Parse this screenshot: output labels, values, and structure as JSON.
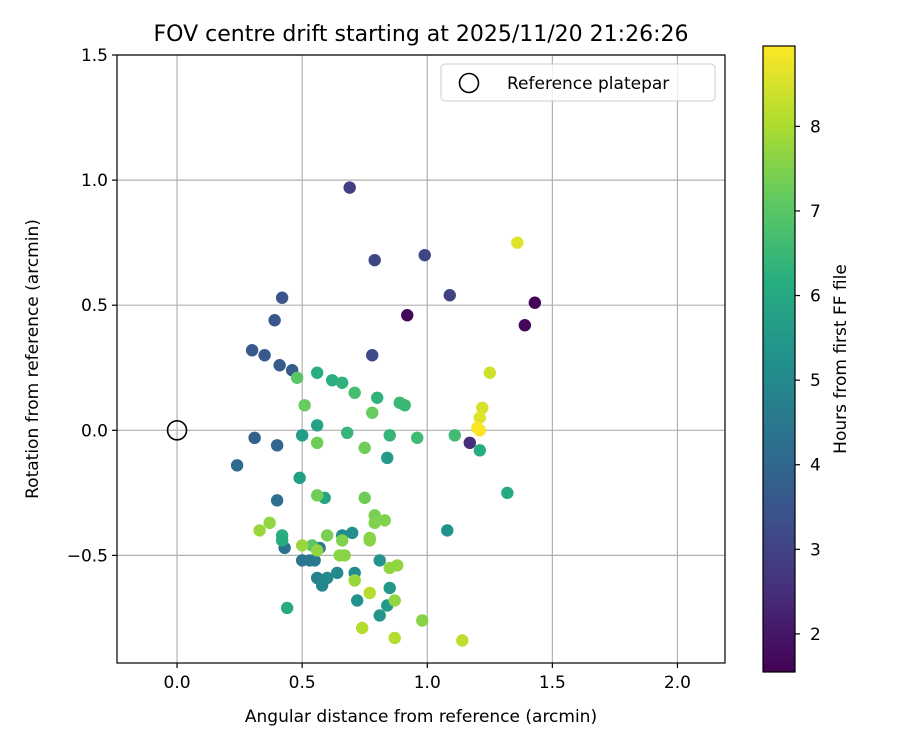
{
  "chart_data": {
    "type": "scatter",
    "title": "FOV centre drift starting at 2025/11/20 21:26:26",
    "xlabel": "Angular distance from reference (arcmin)",
    "ylabel": "Rotation from reference (arcmin)",
    "xlim": [
      -0.24,
      2.19
    ],
    "ylim": [
      -0.93,
      1.5
    ],
    "xticks": [
      0.0,
      0.5,
      1.0,
      1.5,
      2.0
    ],
    "xtick_labels": [
      "0.0",
      "0.5",
      "1.0",
      "1.5",
      "2.0"
    ],
    "yticks": [
      -0.5,
      0.0,
      0.5,
      1.0,
      1.5
    ],
    "ytick_labels": [
      "−0.5",
      "0.0",
      "0.5",
      "1.0",
      "1.5"
    ],
    "grid": true,
    "legend": {
      "position": "top-right",
      "entries": [
        "Reference platepar"
      ]
    },
    "reference": {
      "x": 0.0,
      "y": 0.0,
      "label": "Reference platepar"
    },
    "colorbar": {
      "label": "Hours from first FF file",
      "colormap": "viridis",
      "range": [
        1.55,
        8.95
      ],
      "ticks": [
        2,
        3,
        4,
        5,
        6,
        7,
        8
      ],
      "tick_labels": [
        "2",
        "3",
        "4",
        "5",
        "6",
        "7",
        "8"
      ]
    },
    "points": [
      {
        "x": 0.92,
        "y": 0.46,
        "h": 1.7
      },
      {
        "x": 1.43,
        "y": 0.51,
        "h": 1.6
      },
      {
        "x": 1.39,
        "y": 0.42,
        "h": 1.65
      },
      {
        "x": 1.17,
        "y": -0.05,
        "h": 2.5
      },
      {
        "x": 0.69,
        "y": 0.97,
        "h": 2.9
      },
      {
        "x": 0.79,
        "y": 0.68,
        "h": 3.1
      },
      {
        "x": 0.99,
        "y": 0.7,
        "h": 3.1
      },
      {
        "x": 1.09,
        "y": 0.54,
        "h": 3.0
      },
      {
        "x": 0.78,
        "y": 0.3,
        "h": 3.2
      },
      {
        "x": 0.42,
        "y": 0.53,
        "h": 3.5
      },
      {
        "x": 0.39,
        "y": 0.44,
        "h": 3.5
      },
      {
        "x": 0.3,
        "y": 0.32,
        "h": 3.6
      },
      {
        "x": 0.35,
        "y": 0.3,
        "h": 3.6
      },
      {
        "x": 0.41,
        "y": 0.26,
        "h": 3.7
      },
      {
        "x": 0.46,
        "y": 0.24,
        "h": 3.7
      },
      {
        "x": 0.31,
        "y": -0.03,
        "h": 3.9
      },
      {
        "x": 0.4,
        "y": -0.06,
        "h": 4.0
      },
      {
        "x": 0.24,
        "y": -0.14,
        "h": 4.1
      },
      {
        "x": 0.4,
        "y": -0.28,
        "h": 4.2
      },
      {
        "x": 0.43,
        "y": -0.47,
        "h": 4.3
      },
      {
        "x": 0.5,
        "y": -0.52,
        "h": 4.4
      },
      {
        "x": 0.53,
        "y": -0.52,
        "h": 4.5
      },
      {
        "x": 0.55,
        "y": -0.52,
        "h": 4.5
      },
      {
        "x": 0.57,
        "y": -0.47,
        "h": 4.6
      },
      {
        "x": 0.56,
        "y": -0.59,
        "h": 4.8
      },
      {
        "x": 0.58,
        "y": -0.62,
        "h": 4.9
      },
      {
        "x": 0.6,
        "y": -0.59,
        "h": 5.0
      },
      {
        "x": 0.64,
        "y": -0.57,
        "h": 5.0
      },
      {
        "x": 0.66,
        "y": -0.42,
        "h": 5.1
      },
      {
        "x": 0.71,
        "y": -0.57,
        "h": 5.1
      },
      {
        "x": 0.7,
        "y": -0.41,
        "h": 5.2
      },
      {
        "x": 0.72,
        "y": -0.68,
        "h": 5.3
      },
      {
        "x": 0.81,
        "y": -0.74,
        "h": 5.4
      },
      {
        "x": 0.84,
        "y": -0.7,
        "h": 5.5
      },
      {
        "x": 0.85,
        "y": -0.63,
        "h": 5.5
      },
      {
        "x": 0.81,
        "y": -0.52,
        "h": 5.4
      },
      {
        "x": 1.08,
        "y": -0.4,
        "h": 5.3
      },
      {
        "x": 0.84,
        "y": -0.11,
        "h": 5.5
      },
      {
        "x": 0.5,
        "y": -0.02,
        "h": 5.6
      },
      {
        "x": 0.49,
        "y": -0.19,
        "h": 5.7
      },
      {
        "x": 0.56,
        "y": 0.02,
        "h": 5.8
      },
      {
        "x": 0.59,
        "y": -0.27,
        "h": 5.9
      },
      {
        "x": 0.44,
        "y": -0.71,
        "h": 6.0
      },
      {
        "x": 1.32,
        "y": -0.25,
        "h": 6.0
      },
      {
        "x": 1.21,
        "y": -0.08,
        "h": 6.1
      },
      {
        "x": 0.56,
        "y": 0.23,
        "h": 6.2
      },
      {
        "x": 0.62,
        "y": 0.2,
        "h": 6.2
      },
      {
        "x": 0.66,
        "y": 0.19,
        "h": 6.3
      },
      {
        "x": 0.8,
        "y": 0.13,
        "h": 6.3
      },
      {
        "x": 0.68,
        "y": -0.01,
        "h": 6.4
      },
      {
        "x": 0.85,
        "y": -0.02,
        "h": 6.4
      },
      {
        "x": 0.89,
        "y": 0.11,
        "h": 6.5
      },
      {
        "x": 0.91,
        "y": 0.1,
        "h": 6.5
      },
      {
        "x": 0.96,
        "y": -0.03,
        "h": 6.6
      },
      {
        "x": 1.11,
        "y": -0.02,
        "h": 6.6
      },
      {
        "x": 0.71,
        "y": 0.15,
        "h": 6.7
      },
      {
        "x": 0.48,
        "y": 0.21,
        "h": 7.0
      },
      {
        "x": 0.51,
        "y": 0.1,
        "h": 7.2
      },
      {
        "x": 0.56,
        "y": -0.05,
        "h": 7.3
      },
      {
        "x": 0.75,
        "y": -0.07,
        "h": 7.3
      },
      {
        "x": 0.78,
        "y": 0.07,
        "h": 7.2
      },
      {
        "x": 0.56,
        "y": -0.26,
        "h": 7.3
      },
      {
        "x": 0.75,
        "y": -0.27,
        "h": 7.3
      },
      {
        "x": 0.42,
        "y": -0.42,
        "h": 6.2
      },
      {
        "x": 0.42,
        "y": -0.44,
        "h": 6.1
      },
      {
        "x": 0.54,
        "y": -0.46,
        "h": 7.0
      },
      {
        "x": 0.6,
        "y": -0.42,
        "h": 7.4
      },
      {
        "x": 0.66,
        "y": -0.44,
        "h": 7.5
      },
      {
        "x": 0.67,
        "y": -0.5,
        "h": 7.6
      },
      {
        "x": 0.65,
        "y": -0.5,
        "h": 7.6
      },
      {
        "x": 0.79,
        "y": -0.34,
        "h": 7.4
      },
      {
        "x": 0.79,
        "y": -0.37,
        "h": 7.5
      },
      {
        "x": 0.83,
        "y": -0.36,
        "h": 7.5
      },
      {
        "x": 0.77,
        "y": -0.43,
        "h": 7.6
      },
      {
        "x": 0.77,
        "y": -0.44,
        "h": 7.6
      },
      {
        "x": 0.85,
        "y": -0.55,
        "h": 7.7
      },
      {
        "x": 0.88,
        "y": -0.54,
        "h": 7.7
      },
      {
        "x": 0.87,
        "y": -0.68,
        "h": 7.7
      },
      {
        "x": 0.71,
        "y": -0.6,
        "h": 7.8
      },
      {
        "x": 0.98,
        "y": -0.76,
        "h": 7.6
      },
      {
        "x": 0.33,
        "y": -0.4,
        "h": 7.8
      },
      {
        "x": 0.37,
        "y": -0.37,
        "h": 7.7
      },
      {
        "x": 0.5,
        "y": -0.46,
        "h": 7.8
      },
      {
        "x": 0.56,
        "y": -0.48,
        "h": 7.7
      },
      {
        "x": 0.77,
        "y": -0.65,
        "h": 8.1
      },
      {
        "x": 0.74,
        "y": -0.79,
        "h": 8.1
      },
      {
        "x": 0.87,
        "y": -0.83,
        "h": 8.1
      },
      {
        "x": 1.14,
        "y": -0.84,
        "h": 8.2
      },
      {
        "x": 1.25,
        "y": 0.23,
        "h": 8.4
      },
      {
        "x": 1.22,
        "y": 0.09,
        "h": 8.5
      },
      {
        "x": 1.21,
        "y": 0.05,
        "h": 8.6
      },
      {
        "x": 1.2,
        "y": 0.01,
        "h": 8.9
      },
      {
        "x": 1.21,
        "y": 0.0,
        "h": 8.9
      },
      {
        "x": 1.36,
        "y": 0.75,
        "h": 8.6
      }
    ]
  }
}
